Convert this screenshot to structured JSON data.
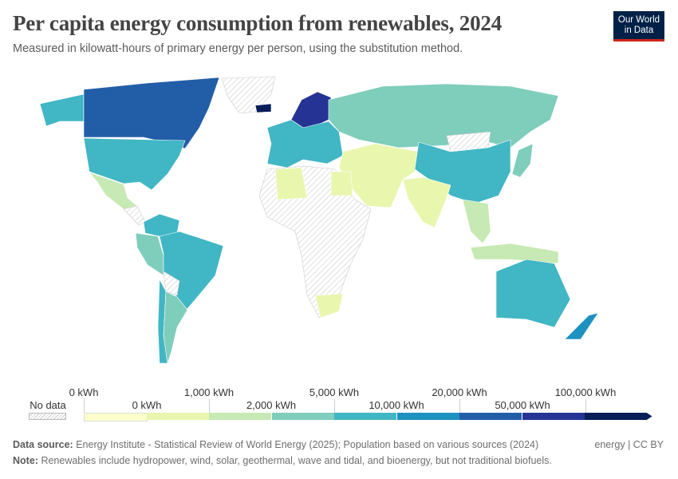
{
  "header": {
    "title": "Per capita energy consumption from renewables, 2024",
    "subtitle": "Measured in kilowatt-hours of primary energy per person, using the substitution method.",
    "logo_text": [
      "Our World",
      "in Data"
    ]
  },
  "legend": {
    "no_data_label": "No data",
    "upper_labels": [
      "0 kWh",
      "1,000 kWh",
      "5,000 kWh",
      "20,000 kWh",
      "100,000 kWh"
    ],
    "lower_labels": [
      "0 kWh",
      "2,000 kWh",
      "10,000 kWh",
      "50,000 kWh"
    ],
    "bin_colors": [
      "#fefecc",
      "#e9f6ae",
      "#c7e9b4",
      "#7fcdbb",
      "#41b6c4",
      "#1d91c0",
      "#225ea8",
      "#253494",
      "#081d58"
    ],
    "no_data_color": "#e8e8e8"
  },
  "footer": {
    "source_label": "Data source:",
    "source_text": "Energy Institute - Statistical Review of World Energy (2025); Population based on various sources (2024)",
    "note_label": "Note:",
    "note_text": "Renewables include hydropower, wind, solar, geothermal, wave and tidal, and bioenergy, but not traditional biofuels.",
    "right_text": "energy | CC BY"
  }
}
